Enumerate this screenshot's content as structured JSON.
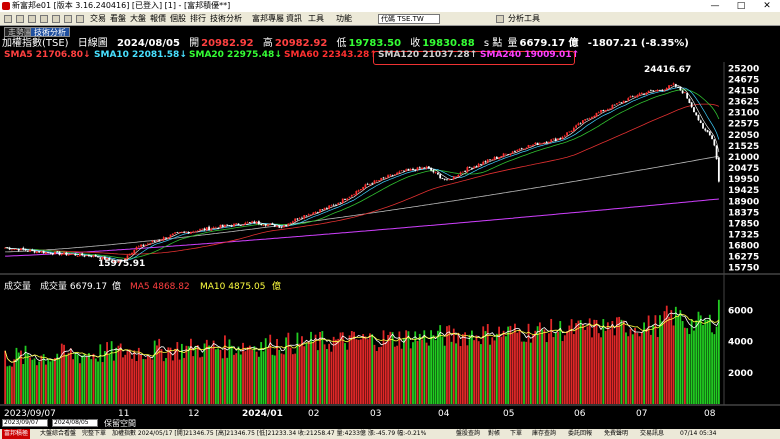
{
  "window": {
    "title": "新富邦e01 [版本 3.16.240416] [已登入] [1] - [富邦積優**]",
    "min": "—",
    "max": "□",
    "close": "✕"
  },
  "menu": [
    "交易",
    "看盤",
    "大盤",
    "報價",
    "個股",
    "排行",
    "技術分析",
    "富邦專屬",
    "資訊",
    "工具",
    "功能"
  ],
  "symbol": "代碼 TSE.TW",
  "menu_right": "分析工具",
  "tabs": [
    {
      "label": "走勢圖",
      "active": false
    },
    {
      "label": "技術分析",
      "active": true
    }
  ],
  "info": {
    "name": "加權指數(TSE)",
    "period": "日線圖",
    "date": "2024/08/05",
    "open_label": "開",
    "open": "20982.92",
    "high_label": "高",
    "high": "20982.92",
    "low_label": "低",
    "low": "19783.50",
    "close_label": "收",
    "close": "19830.88",
    "unit": "s 點",
    "volume_label": "量",
    "volume": "6679.17 億",
    "change": "-1807.21 (-8.35%)"
  },
  "ma": [
    {
      "text": "SMA5 21706.80↓",
      "color": "#ff4040"
    },
    {
      "text": "SMA10 22081.58↓",
      "color": "#48e0ff"
    },
    {
      "text": "SMA20 22975.48↓",
      "color": "#35ff35"
    },
    {
      "text": "SMA60 22343.28↑",
      "color": "#ff3030"
    },
    {
      "text": "SMA120 21037.28↑",
      "color": "#cfcfcf"
    },
    {
      "text": "SMA240 19009.01↑",
      "color": "#ff40ff"
    }
  ],
  "volume_info": {
    "label": "成交量",
    "value_label": "成交量 6679.17",
    "unit": "億",
    "ma5": "MA5 4868.82",
    "ma10": "MA10 4875.05",
    "unit2": "億"
  },
  "colors": {
    "up": "#ff3030",
    "down": "#35d035",
    "accent": "#2050a0"
  },
  "chart_data": {
    "type": "candlestick",
    "price_axis": {
      "ticks": [
        15750,
        16275,
        16800,
        17325,
        17850,
        18375,
        18900,
        19425,
        19950,
        20475,
        21000,
        21525,
        22050,
        22575,
        23100,
        23625,
        24150,
        24675,
        25200
      ],
      "range": [
        15500,
        25500
      ]
    },
    "volume_axis": {
      "ticks": [
        2000,
        4000,
        6000
      ],
      "range": [
        0,
        7500
      ]
    },
    "x_labels": [
      "2023/09/07",
      "11",
      "12",
      "2024/01",
      "02",
      "03",
      "04",
      "05",
      "06",
      "07",
      "08"
    ],
    "annotations": [
      {
        "text": "24416.67",
        "x": 2024.53,
        "y": 24416.67
      },
      {
        "text": "15975.91",
        "x": 2023.83,
        "y": 15975.91
      }
    ],
    "last_candle": {
      "open": 20982.92,
      "high": 20982.92,
      "low": 19783.5,
      "close": 19830.88,
      "volume": 6679.17
    }
  },
  "bottom": {
    "from": "2023/09/07",
    "to": "2024/08/05",
    "pause": "保留空間"
  },
  "status": {
    "left": "富邦積極",
    "items": [
      "大盤綜合看盤",
      "完整下單",
      "加權指數 2024/05/17 [開]21346.75 [高]21346.75 [低]21233.34 收:21258.47 量:4233億 漲:-45.79 幅:-0.21%"
    ],
    "right": [
      "盤股查詢",
      "對帳",
      "下單",
      "庫存查詢",
      "委託回報",
      "免費聲明",
      "交易訊息",
      "07/14 05:34"
    ]
  }
}
